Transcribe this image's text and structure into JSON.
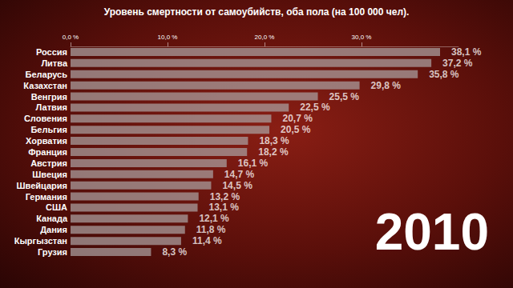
{
  "chart_data": {
    "type": "bar",
    "orientation": "horizontal",
    "title": "Уровень смертности от самоубийств, оба пола (на 100 000 чел).",
    "annotations": [
      "2010"
    ],
    "categories": [
      "Россия",
      "Литва",
      "Беларусь",
      "Казахстан",
      "Венгрия",
      "Латвия",
      "Словения",
      "Бельгия",
      "Хорватия",
      "Франция",
      "Австрия",
      "Швеция",
      "Швейцария",
      "Германия",
      "США",
      "Канада",
      "Дания",
      "Кыргызстан",
      "Грузия"
    ],
    "values": [
      38.1,
      37.2,
      35.8,
      29.8,
      25.5,
      22.5,
      20.7,
      20.5,
      18.3,
      18.2,
      16.1,
      14.7,
      14.5,
      13.2,
      13.1,
      12.1,
      11.8,
      11.4,
      8.3
    ],
    "value_labels": [
      "38,1 %",
      "37,2 %",
      "35,8 %",
      "29,8 %",
      "25,5 %",
      "22,5 %",
      "20,7 %",
      "20,5 %",
      "18,3 %",
      "18,2 %",
      "16,1 %",
      "14,7 %",
      "14,5 %",
      "13,2 %",
      "13,1 %",
      "12,1 %",
      "11,8 %",
      "11,4 %",
      "8,3 %"
    ],
    "data_labels": true,
    "color": "#a89c9c",
    "xlim": [
      0,
      40
    ],
    "xticks": [
      {
        "value": 0,
        "label": "0,0 %"
      },
      {
        "value": 10,
        "label": "10,0 %"
      },
      {
        "value": 20,
        "label": "20,0 %"
      },
      {
        "value": 30,
        "label": "30,0 %"
      }
    ],
    "grid": false
  }
}
